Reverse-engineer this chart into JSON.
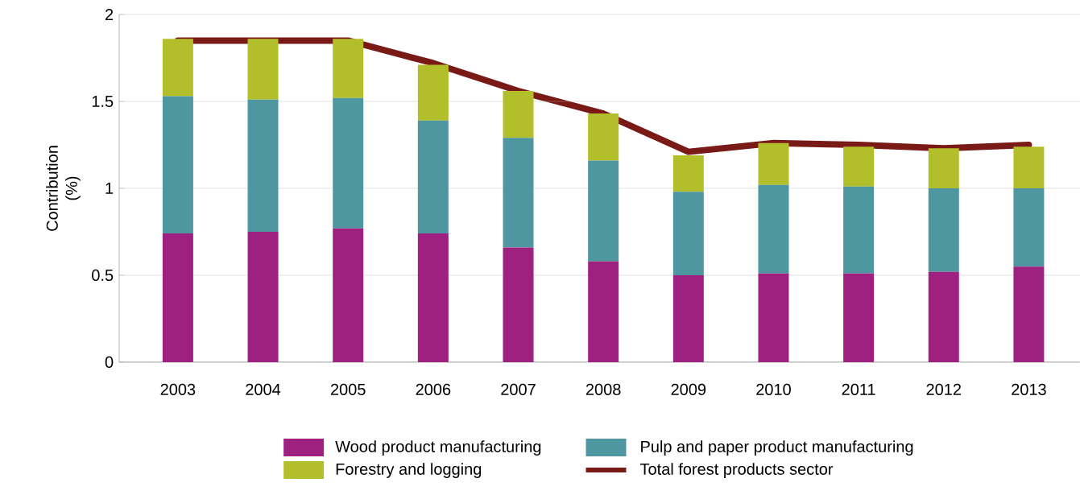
{
  "chart_data": {
    "type": "bar",
    "stacked": true,
    "ylabel": "Contribution (%)",
    "categories": [
      "2003",
      "2004",
      "2005",
      "2006",
      "2007",
      "2008",
      "2009",
      "2010",
      "2011",
      "2012",
      "2013"
    ],
    "series": [
      {
        "name": "Wood product manufacturing",
        "color": "#9e2180",
        "values": [
          0.74,
          0.75,
          0.77,
          0.74,
          0.66,
          0.58,
          0.5,
          0.51,
          0.51,
          0.52,
          0.55
        ]
      },
      {
        "name": "Pulp and paper product manufacturing",
        "color": "#4f97a0",
        "values": [
          0.79,
          0.76,
          0.75,
          0.65,
          0.63,
          0.58,
          0.48,
          0.51,
          0.5,
          0.48,
          0.45
        ]
      },
      {
        "name": "Forestry and logging",
        "color": "#b3bf2a",
        "values": [
          0.33,
          0.35,
          0.34,
          0.32,
          0.27,
          0.27,
          0.21,
          0.24,
          0.23,
          0.23,
          0.24
        ]
      },
      {
        "name": "Total forest products sector",
        "type": "line",
        "color": "#7a1a16",
        "values": [
          1.85,
          1.85,
          1.85,
          1.72,
          1.56,
          1.43,
          1.21,
          1.26,
          1.25,
          1.23,
          1.25
        ]
      }
    ],
    "ylim": [
      0,
      2
    ],
    "yticks": [
      0,
      0.5,
      1,
      1.5,
      2
    ],
    "grid": "y",
    "legend": "bottom"
  }
}
